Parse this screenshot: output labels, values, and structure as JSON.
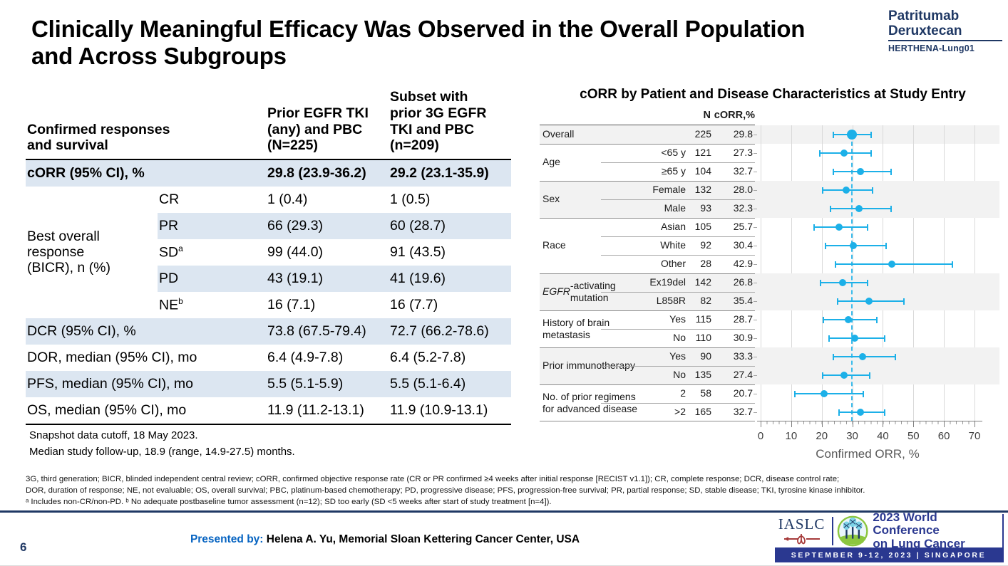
{
  "slide": {
    "title": "Clinically Meaningful Efficacy Was Observed in the Overall Population\nand Across Subgroups",
    "page_number": "6"
  },
  "brand": {
    "product": "Patritumab\nDeruxtecan",
    "study": "HERTHENA-Lung01"
  },
  "efficacy_table": {
    "col_headers": [
      "Confirmed responses\nand survival",
      "Prior EGFR TKI\n(any) and PBC\n(N=225)",
      "Subset with\nprior 3G EGFR\nTKI and PBC\n(n=209)"
    ],
    "rows": [
      {
        "label": "cORR (95% CI), %",
        "span": "wide",
        "bold": true,
        "shaded": true,
        "values": [
          "29.8 (23.9-36.2)",
          "29.2 (23.1-35.9)"
        ]
      },
      {
        "label": "Best overall\nresponse\n(BICR), n (%)",
        "span": "group5",
        "sub": "CR",
        "shaded": false,
        "values": [
          "1 (0.4)",
          "1 (0.5)"
        ]
      },
      {
        "sub": "PR",
        "shaded": true,
        "values": [
          "66 (29.3)",
          "60 (28.7)"
        ]
      },
      {
        "sub": "SD",
        "sup": "a",
        "shaded": false,
        "values": [
          "99 (44.0)",
          "91 (43.5)"
        ]
      },
      {
        "sub": "PD",
        "shaded": true,
        "values": [
          "43 (19.1)",
          "41 (19.6)"
        ]
      },
      {
        "sub": "NE",
        "sup": "b",
        "shaded": false,
        "values": [
          "16 (7.1)",
          "16 (7.7)"
        ]
      },
      {
        "label": "DCR (95% CI), %",
        "span": "wide",
        "shaded": true,
        "values": [
          "73.8 (67.5-79.4)",
          "72.7 (66.2-78.6)"
        ]
      },
      {
        "label": "DOR, median (95% CI), mo",
        "span": "wide",
        "shaded": false,
        "values": [
          "6.4 (4.9-7.8)",
          "6.4 (5.2-7.8)"
        ]
      },
      {
        "label": "PFS, median (95% CI), mo",
        "span": "wide",
        "shaded": true,
        "values": [
          "5.5 (5.1-5.9)",
          "5.5 (5.1-6.4)"
        ]
      },
      {
        "label": "OS, median (95% CI), mo",
        "span": "wide",
        "shaded": false,
        "values": [
          "11.9 (11.2-13.1)",
          "11.9 (10.9-13.1)"
        ]
      }
    ],
    "notes": [
      "Snapshot data cutoff, 18 May 2023.",
      "Median study follow-up, 18.9 (range, 14.9-27.5) months."
    ]
  },
  "chart_data": {
    "type": "scatter",
    "subtype": "forest-plot",
    "title": "cORR by Patient and Disease Characteristics at Study Entry",
    "col_headers": [
      "N",
      "cORR,%"
    ],
    "xlabel": "Confirmed ORR, %",
    "xlim": [
      0,
      70
    ],
    "xticks": [
      0,
      10,
      20,
      30,
      40,
      50,
      60,
      70
    ],
    "reference_line_x": 29.8,
    "grid": true,
    "groups": [
      {
        "label": "Overall",
        "shaded": true,
        "rows": [
          {
            "sub": "",
            "n": "225",
            "orr": "29.8",
            "est": 29.8,
            "ci": [
              23.9,
              36.2
            ],
            "emphasis": true
          }
        ]
      },
      {
        "label": "Age",
        "shaded": false,
        "rows": [
          {
            "sub": "<65 y",
            "n": "121",
            "orr": "27.3",
            "est": 27.3,
            "ci": [
              19.4,
              36.1
            ]
          },
          {
            "sub": "≥65 y",
            "n": "104",
            "orr": "32.7",
            "est": 32.7,
            "ci": [
              23.8,
              42.6
            ]
          }
        ]
      },
      {
        "label": "Sex",
        "shaded": true,
        "rows": [
          {
            "sub": "Female",
            "n": "132",
            "orr": "28.0",
            "est": 28.0,
            "ci": [
              20.4,
              36.6
            ]
          },
          {
            "sub": "Male",
            "n": "93",
            "orr": "32.3",
            "est": 32.3,
            "ci": [
              22.9,
              42.8
            ]
          }
        ]
      },
      {
        "label": "Race",
        "shaded": false,
        "rows": [
          {
            "sub": "Asian",
            "n": "105",
            "orr": "25.7",
            "est": 25.7,
            "ci": [
              17.6,
              35.1
            ]
          },
          {
            "sub": "White",
            "n": "92",
            "orr": "30.4",
            "est": 30.4,
            "ci": [
              21.3,
              41.0
            ]
          },
          {
            "sub": "Other",
            "n": "28",
            "orr": "42.9",
            "est": 42.9,
            "ci": [
              24.5,
              62.7
            ]
          }
        ]
      },
      {
        "label_prefix_italic": "EGFR",
        "label": "-activating\nmutation",
        "shaded": true,
        "rows": [
          {
            "sub": "Ex19del",
            "n": "142",
            "orr": "26.8",
            "est": 26.8,
            "ci": [
              19.5,
              34.9
            ]
          },
          {
            "sub": "L858R",
            "n": "82",
            "orr": "35.4",
            "est": 35.4,
            "ci": [
              25.2,
              46.8
            ]
          }
        ]
      },
      {
        "label": "History of brain\nmetastasis",
        "shaded": false,
        "rows": [
          {
            "sub": "Yes",
            "n": "115",
            "orr": "28.7",
            "est": 28.7,
            "ci": [
              20.5,
              38.0
            ]
          },
          {
            "sub": "No",
            "n": "110",
            "orr": "30.9",
            "est": 30.9,
            "ci": [
              22.4,
              40.6
            ]
          }
        ]
      },
      {
        "label": "Prior immunotherapy",
        "shaded": true,
        "rows": [
          {
            "sub": "Yes",
            "n": "90",
            "orr": "33.3",
            "est": 33.3,
            "ci": [
              23.8,
              44.2
            ]
          },
          {
            "sub": "No",
            "n": "135",
            "orr": "27.4",
            "est": 27.4,
            "ci": [
              20.2,
              35.8
            ]
          }
        ]
      },
      {
        "label": "No. of prior regimens\nfor advanced disease",
        "shaded": false,
        "rows": [
          {
            "sub": "2",
            "n": "58",
            "orr": "20.7",
            "est": 20.7,
            "ci": [
              11.1,
              33.6
            ]
          },
          {
            "sub": ">2",
            "n": "165",
            "orr": "32.7",
            "est": 32.7,
            "ci": [
              25.7,
              40.5
            ]
          }
        ]
      }
    ]
  },
  "footnotes": [
    "3G, third generation; BICR, blinded independent central review; cORR, confirmed objective response rate (CR or PR confirmed ≥4 weeks after initial response [RECIST v1.1]); CR, complete response; DCR, disease control rate;",
    "DOR, duration of response; NE, not evaluable; OS, overall survival; PBC, platinum-based chemotherapy; PD, progressive disease; PFS, progression-free survival; PR, partial response; SD, stable disease; TKI, tyrosine kinase inhibitor.",
    "ᵃ Includes non-CR/non-PD. ᵇ No adequate postbaseline tumor assessment (n=12); SD too early (SD <5 weeks after start of study treatment [n=4])."
  ],
  "footer": {
    "presented_by_label": "Presented by:",
    "presenter": "Helena A. Yu, Memorial Sloan Kettering Cancer Center, USA"
  },
  "conference": {
    "org": "IASLC",
    "name": "2023 World Conference\non Lung Cancer",
    "banner": "SEPTEMBER 9-12, 2023 | SINGAPORE"
  },
  "colors": {
    "brand_navy": "#1f3864",
    "conference_navy": "#2a3890",
    "presented_blue": "#0563c1",
    "marker_cyan": "#1cb0e8",
    "table_row_blue": "#dce6f1",
    "forest_band_gray": "#f2f2f2"
  }
}
